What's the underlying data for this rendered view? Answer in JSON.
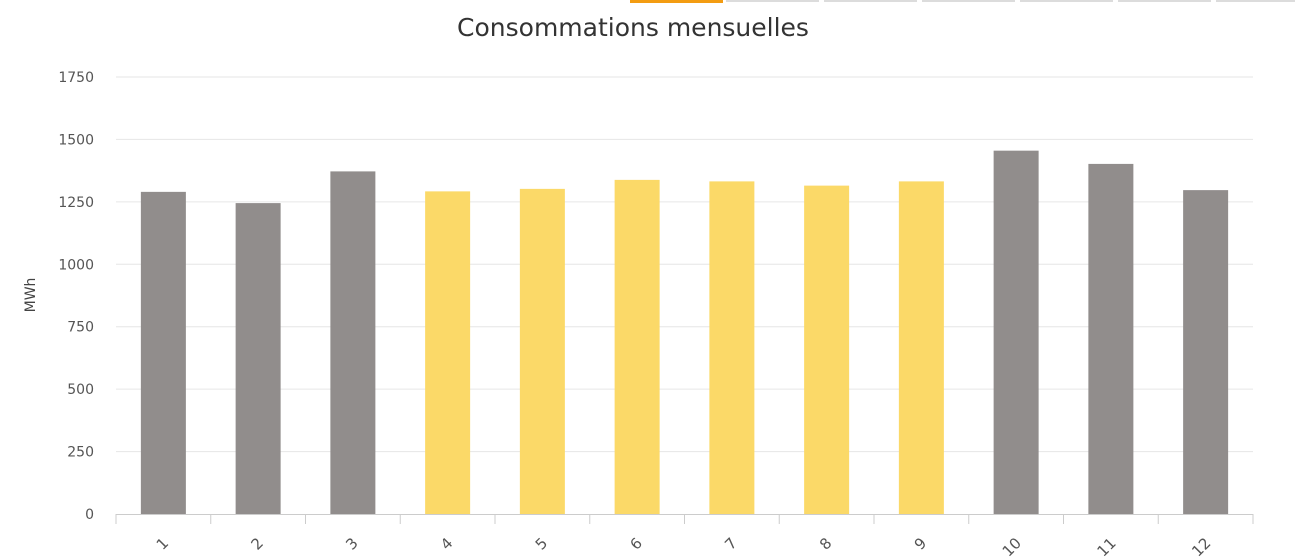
{
  "tabs": [
    {
      "label": "",
      "active": true
    },
    {
      "label": "",
      "active": false
    },
    {
      "label": "",
      "active": false
    },
    {
      "label": "",
      "active": false
    },
    {
      "label": "",
      "active": false
    },
    {
      "label": "",
      "active": false
    },
    {
      "label": "",
      "active": false
    }
  ],
  "colors": {
    "grey_bar": "#918d8c",
    "yellow_bar": "#fbd968",
    "grid": "#e6e6e6",
    "axis": "#cccccc",
    "tab_active": "#f39c12",
    "tab_inactive": "#dcdcdc"
  },
  "chart_data": {
    "type": "bar",
    "title": "Consommations mensuelles",
    "xlabel": "",
    "ylabel": "MWh",
    "categories": [
      "1",
      "2",
      "3",
      "4",
      "5",
      "6",
      "7",
      "8",
      "9",
      "10",
      "11",
      "12"
    ],
    "values": [
      1290,
      1245,
      1372,
      1292,
      1302,
      1338,
      1332,
      1315,
      1332,
      1455,
      1402,
      1297
    ],
    "bar_colors": [
      "grey",
      "grey",
      "grey",
      "yellow",
      "yellow",
      "yellow",
      "yellow",
      "yellow",
      "yellow",
      "grey",
      "grey",
      "grey"
    ],
    "ylim": [
      0,
      1750
    ],
    "yticks": [
      "0",
      "250",
      "500",
      "750",
      "1000",
      "1250",
      "1500",
      "1750"
    ],
    "grid": true,
    "legend": "none"
  }
}
